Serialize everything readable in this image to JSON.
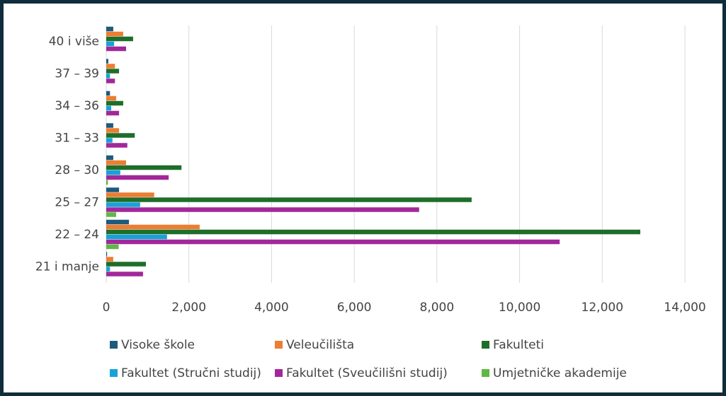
{
  "chart_data": {
    "type": "bar",
    "orientation": "horizontal",
    "categories": [
      "21 i manje",
      "22 – 24",
      "25 – 27",
      "28 – 30",
      "31 – 33",
      "34 – 36",
      "37 – 39",
      "40 i više"
    ],
    "series": [
      {
        "name": "Visoke škole",
        "color": "#1d5a7c",
        "values": [
          20,
          550,
          310,
          170,
          170,
          90,
          50,
          170
        ]
      },
      {
        "name": "Veleučilišta",
        "color": "#ed7d31",
        "values": [
          170,
          2260,
          1160,
          480,
          310,
          240,
          210,
          410
        ]
      },
      {
        "name": "Fakulteti",
        "color": "#1e6e2a",
        "values": [
          960,
          12920,
          8840,
          1820,
          690,
          410,
          310,
          650
        ]
      },
      {
        "name": "Fakultet (Stručni studij)",
        "color": "#17a2d8",
        "values": [
          90,
          1470,
          820,
          340,
          150,
          120,
          90,
          190
        ]
      },
      {
        "name": "Fakultet (Sveučilišni studij)",
        "color": "#a2289a",
        "values": [
          890,
          10970,
          7570,
          1510,
          510,
          310,
          210,
          480
        ]
      },
      {
        "name": "Umjetničke akademije",
        "color": "#5fb744",
        "values": [
          0,
          300,
          240,
          40,
          0,
          0,
          0,
          0
        ]
      }
    ],
    "xlim": [
      0,
      14000
    ],
    "xticks": [
      0,
      {
        "value": 2000,
        "label": "2,000"
      },
      {
        "value": 4000,
        "label": "4,000"
      },
      {
        "value": 6000,
        "label": "6,000"
      },
      {
        "value": 8000,
        "label": "8,000"
      },
      {
        "value": 10000,
        "label": "10,000"
      },
      {
        "value": 12000,
        "label": "12,000"
      },
      {
        "value": 14000,
        "label": "14,000"
      }
    ],
    "grid": true,
    "legend": "bottom"
  }
}
